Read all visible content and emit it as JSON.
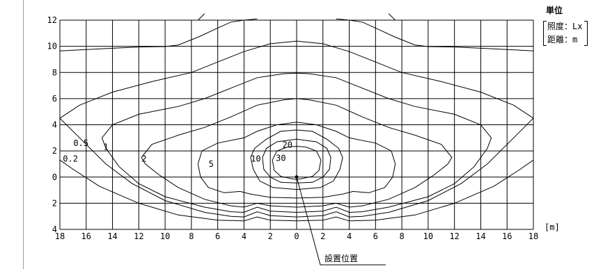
{
  "unit": {
    "title": "単位",
    "illuminance": "照度：Lx",
    "distance": "距離：m"
  },
  "x_unit_label": "[m]",
  "install_label": "設置位置",
  "chart_data": {
    "type": "contour",
    "title": "",
    "xlabel": "",
    "ylabel": "",
    "xlim": [
      -18,
      18
    ],
    "ylim": [
      -4,
      12
    ],
    "x_ticks": [
      -18,
      -16,
      -14,
      -12,
      -10,
      -8,
      -6,
      -4,
      -2,
      0,
      2,
      4,
      6,
      8,
      10,
      12,
      14,
      16,
      18
    ],
    "x_tick_labels": [
      "18",
      "16",
      "14",
      "12",
      "10",
      "8",
      "6",
      "4",
      "2",
      "0",
      "2",
      "4",
      "6",
      "8",
      "10",
      "12",
      "14",
      "16",
      "18"
    ],
    "y_ticks": [
      -4,
      -2,
      0,
      2,
      4,
      6,
      8,
      10,
      12
    ],
    "y_tick_labels": [
      "4",
      "2",
      "0",
      "2",
      "4",
      "6",
      "8",
      "10",
      "12"
    ],
    "grid": true,
    "source_point": [
      0,
      0
    ],
    "levels": [
      {
        "label": "0.2",
        "label_at": [
          -17.2,
          1.4
        ],
        "points": [
          [
            -18,
            1.3
          ],
          [
            -17,
            0.6
          ],
          [
            -15,
            -0.7
          ],
          [
            -12,
            -2.0
          ],
          [
            -9,
            -2.9
          ],
          [
            -6,
            -3.3
          ],
          [
            -4,
            -3.35
          ],
          [
            -3,
            -3.05
          ],
          [
            -2,
            -3.3
          ],
          [
            0,
            -3.35
          ],
          [
            2,
            -3.3
          ],
          [
            3,
            -3.05
          ],
          [
            4,
            -3.35
          ],
          [
            6,
            -3.3
          ],
          [
            9,
            -2.9
          ],
          [
            12,
            -2.0
          ],
          [
            15,
            -0.7
          ],
          [
            17,
            0.6
          ],
          [
            18,
            1.3
          ]
        ]
      },
      {
        "label": "0.5",
        "label_at": [
          -16.4,
          2.6
        ],
        "points": [
          [
            -18,
            4.5
          ],
          [
            -16.5,
            3.0
          ],
          [
            -14.5,
            1.0
          ],
          [
            -12.5,
            -0.5
          ],
          [
            -10,
            -1.8
          ],
          [
            -7,
            -2.7
          ],
          [
            -5,
            -3.0
          ],
          [
            -4,
            -3.05
          ],
          [
            -3,
            -2.65
          ],
          [
            -2,
            -2.95
          ],
          [
            0,
            -3.05
          ],
          [
            2,
            -2.95
          ],
          [
            3,
            -2.65
          ],
          [
            4,
            -3.05
          ],
          [
            5,
            -3.0
          ],
          [
            7,
            -2.7
          ],
          [
            10,
            -1.8
          ],
          [
            12.5,
            -0.5
          ],
          [
            14.5,
            1.0
          ],
          [
            16.5,
            3.0
          ],
          [
            18,
            4.5
          ],
          [
            16.5,
            5.5
          ],
          [
            14,
            6.5
          ],
          [
            11,
            7.3
          ],
          [
            8,
            8.0
          ],
          [
            6,
            8.8
          ],
          [
            4,
            9.6
          ],
          [
            2,
            10.2
          ],
          [
            0,
            10.4
          ],
          [
            -2,
            10.2
          ],
          [
            -4,
            9.6
          ],
          [
            -6,
            8.8
          ],
          [
            -8,
            8.0
          ],
          [
            -11,
            7.3
          ],
          [
            -14,
            6.5
          ],
          [
            -16.5,
            5.5
          ],
          [
            -18,
            4.5
          ]
        ]
      },
      {
        "label": "1",
        "label_at": [
          -14.5,
          2.3
        ],
        "points": [
          [
            -14.8,
            3.0
          ],
          [
            -14.5,
            2.2
          ],
          [
            -13.5,
            0.8
          ],
          [
            -12,
            -0.5
          ],
          [
            -10,
            -1.5
          ],
          [
            -7,
            -2.3
          ],
          [
            -5,
            -2.65
          ],
          [
            -4,
            -2.7
          ],
          [
            -3,
            -2.3
          ],
          [
            -2,
            -2.6
          ],
          [
            0,
            -2.7
          ],
          [
            2,
            -2.6
          ],
          [
            3,
            -2.3
          ],
          [
            4,
            -2.7
          ],
          [
            5,
            -2.65
          ],
          [
            7,
            -2.3
          ],
          [
            10,
            -1.5
          ],
          [
            12,
            -0.5
          ],
          [
            13.5,
            0.8
          ],
          [
            14.5,
            2.2
          ],
          [
            14.8,
            3.0
          ],
          [
            14,
            4.0
          ],
          [
            12,
            4.8
          ],
          [
            9,
            5.4
          ],
          [
            7,
            6.0
          ],
          [
            5,
            6.8
          ],
          [
            3,
            7.6
          ],
          [
            1,
            7.9
          ],
          [
            0,
            7.95
          ],
          [
            -1,
            7.9
          ],
          [
            -3,
            7.6
          ],
          [
            -5,
            6.8
          ],
          [
            -7,
            6.0
          ],
          [
            -9,
            5.4
          ],
          [
            -12,
            4.8
          ],
          [
            -14,
            4.0
          ],
          [
            -14.8,
            3.0
          ]
        ]
      },
      {
        "label": "2",
        "label_at": [
          -11.6,
          1.4
        ],
        "points": [
          [
            -11.8,
            1.5
          ],
          [
            -11.5,
            1.0
          ],
          [
            -10.5,
            0.2
          ],
          [
            -9,
            -0.8
          ],
          [
            -7,
            -1.7
          ],
          [
            -5,
            -2.2
          ],
          [
            -4,
            -2.3
          ],
          [
            -3,
            -2.0
          ],
          [
            -2,
            -2.2
          ],
          [
            0,
            -2.3
          ],
          [
            2,
            -2.2
          ],
          [
            3,
            -2.0
          ],
          [
            4,
            -2.3
          ],
          [
            5,
            -2.2
          ],
          [
            7,
            -1.7
          ],
          [
            9,
            -0.8
          ],
          [
            10.5,
            0.2
          ],
          [
            11.5,
            1.0
          ],
          [
            11.8,
            1.5
          ],
          [
            11,
            2.5
          ],
          [
            9,
            3.2
          ],
          [
            7,
            3.8
          ],
          [
            5,
            4.6
          ],
          [
            3,
            5.5
          ],
          [
            1,
            5.9
          ],
          [
            0,
            6.0
          ],
          [
            -1,
            5.9
          ],
          [
            -3,
            5.5
          ],
          [
            -5,
            4.6
          ],
          [
            -7,
            3.8
          ],
          [
            -9,
            3.2
          ],
          [
            -11,
            2.5
          ],
          [
            -11.8,
            1.5
          ]
        ]
      },
      {
        "label": "5",
        "label_at": [
          -6.5,
          1.0
        ],
        "points": [
          [
            -7.5,
            1.0
          ],
          [
            -7.3,
            0.0
          ],
          [
            -6.7,
            -0.8
          ],
          [
            -5.5,
            -1.2
          ],
          [
            -4.3,
            -1.1
          ],
          [
            -3.5,
            -1.3
          ],
          [
            -2,
            -1.55
          ],
          [
            0,
            -1.6
          ],
          [
            2,
            -1.55
          ],
          [
            3.5,
            -1.3
          ],
          [
            4.3,
            -1.1
          ],
          [
            5.5,
            -1.2
          ],
          [
            6.7,
            -0.8
          ],
          [
            7.3,
            0.0
          ],
          [
            7.5,
            1.0
          ],
          [
            7.2,
            2.0
          ],
          [
            6,
            2.6
          ],
          [
            4,
            3.0
          ],
          [
            3,
            3.5
          ],
          [
            1.5,
            4.0
          ],
          [
            0,
            4.2
          ],
          [
            -1.5,
            4.0
          ],
          [
            -3,
            3.5
          ],
          [
            -4,
            3.0
          ],
          [
            -6,
            2.6
          ],
          [
            -7.2,
            2.0
          ],
          [
            -7.5,
            1.0
          ]
        ]
      },
      {
        "label": "10",
        "label_at": [
          -3.1,
          1.4
        ],
        "points": [
          [
            -3.5,
            1.5
          ],
          [
            -3.3,
            0.6
          ],
          [
            -2.8,
            -0.3
          ],
          [
            -1.8,
            -0.8
          ],
          [
            0,
            -0.95
          ],
          [
            1.8,
            -0.8
          ],
          [
            2.8,
            -0.3
          ],
          [
            3.3,
            0.6
          ],
          [
            3.5,
            1.5
          ],
          [
            3.2,
            2.2
          ],
          [
            2.3,
            2.9
          ],
          [
            1.2,
            3.5
          ],
          [
            0,
            3.6
          ],
          [
            -1.2,
            3.5
          ],
          [
            -2.3,
            2.9
          ],
          [
            -3.2,
            2.2
          ],
          [
            -3.5,
            1.5
          ]
        ]
      },
      {
        "label": "20",
        "label_at": [
          -0.7,
          2.45
        ],
        "points": [
          [
            -2.6,
            1.5
          ],
          [
            -2.5,
            0.6
          ],
          [
            -2,
            0.0
          ],
          [
            -1.2,
            -0.4
          ],
          [
            0,
            -0.45
          ],
          [
            1.2,
            -0.4
          ],
          [
            2,
            0.0
          ],
          [
            2.5,
            0.6
          ],
          [
            2.6,
            1.5
          ],
          [
            2.3,
            2.2
          ],
          [
            1.5,
            2.7
          ],
          [
            0,
            2.9
          ],
          [
            -1.5,
            2.7
          ],
          [
            -2.3,
            2.2
          ],
          [
            -2.6,
            1.5
          ]
        ]
      },
      {
        "label": "30",
        "label_at": [
          -1.2,
          1.45
        ],
        "points": [
          [
            -1.85,
            1.3
          ],
          [
            -1.7,
            0.5
          ],
          [
            -1.2,
            0.05
          ],
          [
            0,
            -0.2
          ],
          [
            1.2,
            0.05
          ],
          [
            1.7,
            0.5
          ],
          [
            1.85,
            1.3
          ],
          [
            1.5,
            2.0
          ],
          [
            0.7,
            2.3
          ],
          [
            0,
            2.35
          ],
          [
            -0.7,
            2.3
          ],
          [
            -1.5,
            2.0
          ],
          [
            -1.85,
            1.3
          ]
        ]
      },
      {
        "label": "",
        "points": [
          [
            -18,
            9.65
          ],
          [
            -16,
            9.75
          ],
          [
            -14,
            9.85
          ],
          [
            -12,
            9.95
          ],
          [
            -10,
            9.98
          ],
          [
            -9,
            10.1
          ],
          [
            -7.5,
            10.7
          ],
          [
            -6,
            11.4
          ],
          [
            -5,
            11.85
          ],
          [
            -4,
            12.0
          ],
          [
            -3,
            12.1
          ]
        ]
      },
      {
        "label": "",
        "points": [
          [
            3,
            12.1
          ],
          [
            4,
            12.0
          ],
          [
            5,
            11.85
          ],
          [
            6,
            11.4
          ],
          [
            7.5,
            10.7
          ],
          [
            9,
            10.1
          ],
          [
            10,
            9.98
          ],
          [
            12,
            9.95
          ],
          [
            14,
            9.85
          ],
          [
            16,
            9.75
          ],
          [
            18,
            9.65
          ]
        ]
      },
      {
        "label": "",
        "points": [
          [
            -7.5,
            12.0
          ],
          [
            -7,
            12.5
          ]
        ]
      },
      {
        "label": "",
        "points": [
          [
            7.5,
            12.0
          ],
          [
            7,
            12.5
          ]
        ]
      }
    ]
  }
}
